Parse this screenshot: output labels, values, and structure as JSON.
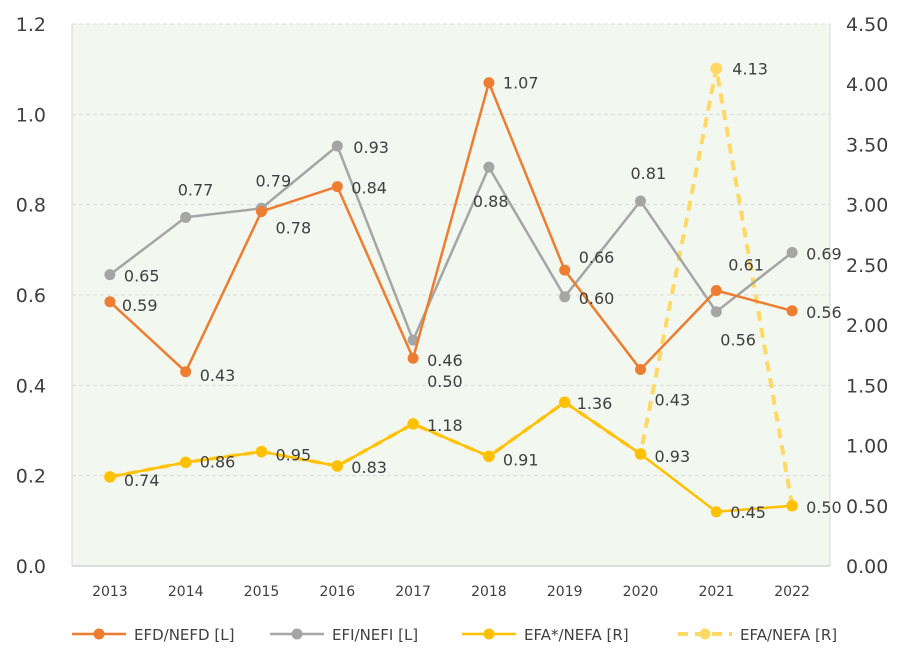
{
  "chart_data": {
    "type": "line",
    "categories": [
      "2013",
      "2014",
      "2015",
      "2016",
      "2017",
      "2018",
      "2019",
      "2020",
      "2021",
      "2022"
    ],
    "left_axis": {
      "ylim": [
        0,
        1.2
      ],
      "ticks": [
        "0.0",
        "0.2",
        "0.4",
        "0.6",
        "0.8",
        "1.0",
        "1.2"
      ]
    },
    "right_axis": {
      "ylim": [
        0,
        4.5
      ],
      "ticks": [
        "0.00",
        "0.50",
        "1.00",
        "1.50",
        "2.00",
        "2.50",
        "3.00",
        "3.50",
        "4.00",
        "4.50"
      ]
    },
    "grid": true,
    "plot_background": "#f2f7ef",
    "legend_position": "bottom",
    "series": [
      {
        "name": "EFD/NEFD [L]",
        "axis": "left",
        "color": "#ed7d31",
        "dash": false,
        "values": [
          0.585,
          0.43,
          0.785,
          0.84,
          0.46,
          1.07,
          0.655,
          0.435,
          0.61,
          0.565
        ],
        "labels": [
          "0.59",
          "0.43",
          "0.78",
          "0.84",
          "0.46",
          "1.07",
          "0.66",
          "0.43",
          "0.61",
          "0.56"
        ]
      },
      {
        "name": "EFI/NEFI [L]",
        "axis": "left",
        "color": "#a5a5a5",
        "dash": false,
        "values": [
          0.645,
          0.772,
          0.792,
          0.93,
          0.5,
          0.883,
          0.596,
          0.808,
          0.563,
          0.694
        ],
        "labels": [
          "0.65",
          "0.77",
          "0.79",
          "0.93",
          "0.50",
          "0.88",
          "0.60",
          "0.81",
          "0.56",
          "0.69"
        ]
      },
      {
        "name": "EFA*/NEFA [R]",
        "axis": "right",
        "color": "#ffc000",
        "dash": false,
        "values": [
          0.74,
          0.86,
          0.95,
          0.83,
          1.18,
          0.91,
          1.36,
          0.93,
          0.45,
          0.5
        ],
        "labels": [
          "0.74",
          "0.86",
          "0.95",
          "0.83",
          "1.18",
          "0.91",
          "1.36",
          "0.93",
          "0.45",
          "0.50"
        ]
      },
      {
        "name": "EFA/NEFA [R]",
        "axis": "right",
        "color": "#ffd966",
        "dash": true,
        "values": [
          0.74,
          0.86,
          0.95,
          0.83,
          1.18,
          0.91,
          1.36,
          0.93,
          4.13,
          0.5
        ],
        "labels": [
          "",
          "",
          "",
          "",
          "",
          "",
          "",
          "",
          "4.13",
          ""
        ]
      }
    ]
  }
}
